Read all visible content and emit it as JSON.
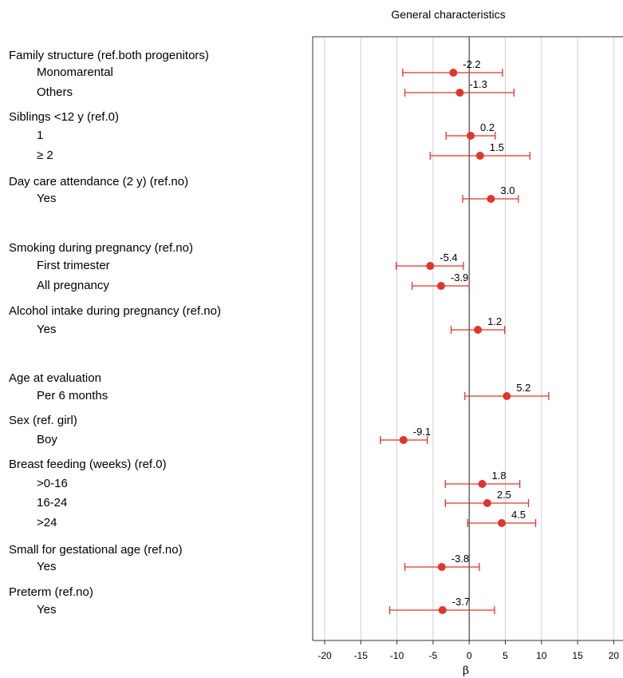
{
  "chart_data": {
    "type": "forest",
    "title": "General characteristics",
    "xlabel": "β",
    "xlim": [
      -20,
      20
    ],
    "xticks": [
      -20,
      -15,
      -10,
      -5,
      0,
      5,
      10,
      15,
      20
    ],
    "grid": true,
    "point_color": "#e0352b",
    "groups": [
      {
        "label": "Family structure (ref.both progenitors)",
        "rows": [
          {
            "label": "Monomarental",
            "value": -2.2,
            "ci": [
              -9.2,
              4.6
            ],
            "value_label": "-2.2"
          },
          {
            "label": "Others",
            "value": -1.3,
            "ci": [
              -8.9,
              6.2
            ],
            "value_label": "-1.3"
          }
        ]
      },
      {
        "label": "Siblings <12 y (ref.0)",
        "rows": [
          {
            "label": "1",
            "value": 0.2,
            "ci": [
              -3.2,
              3.6
            ],
            "value_label": "0.2"
          },
          {
            "label": "≥ 2",
            "value": 1.5,
            "ci": [
              -5.4,
              8.4
            ],
            "value_label": "1.5"
          }
        ]
      },
      {
        "label": "Day care attendance (2 y) (ref.no)",
        "rows": [
          {
            "label": "Yes",
            "value": 3.0,
            "ci": [
              -0.9,
              6.8
            ],
            "value_label": "3.0"
          }
        ]
      },
      {
        "label": "Smoking during pregnancy (ref.no)",
        "rows": [
          {
            "label": "First trimester",
            "value": -5.4,
            "ci": [
              -10.1,
              -0.8
            ],
            "value_label": "-5.4"
          },
          {
            "label": "All pregnancy",
            "value": -3.9,
            "ci": [
              -7.9,
              0.0
            ],
            "value_label": "-3.9"
          }
        ]
      },
      {
        "label": "Alcohol intake during pregnancy (ref.no)",
        "rows": [
          {
            "label": "Yes",
            "value": 1.2,
            "ci": [
              -2.5,
              4.9
            ],
            "value_label": "1.2"
          }
        ]
      },
      {
        "label": "Age at evaluation",
        "rows": [
          {
            "label": "Per 6 months",
            "value": 5.2,
            "ci": [
              -0.6,
              11.0
            ],
            "value_label": "5.2"
          }
        ]
      },
      {
        "label": "Sex (ref. girl)",
        "rows": [
          {
            "label": "Boy",
            "value": -9.1,
            "ci": [
              -12.3,
              -5.8
            ],
            "value_label": "-9.1"
          }
        ]
      },
      {
        "label": "Breast feeding (weeks) (ref.0)",
        "rows": [
          {
            "label": ">0-16",
            "value": 1.8,
            "ci": [
              -3.3,
              7.0
            ],
            "value_label": "1.8"
          },
          {
            "label": "16-24",
            "value": 2.5,
            "ci": [
              -3.3,
              8.2
            ],
            "value_label": "2.5"
          },
          {
            "label": ">24",
            "value": 4.5,
            "ci": [
              -0.2,
              9.2
            ],
            "value_label": "4.5"
          }
        ]
      },
      {
        "label": "Small for gestational age (ref.no)",
        "rows": [
          {
            "label": "Yes",
            "value": -3.8,
            "ci": [
              -8.9,
              1.4
            ],
            "value_label": "-3.8"
          }
        ]
      },
      {
        "label": "Preterm (ref.no)",
        "rows": [
          {
            "label": "Yes",
            "value": -3.7,
            "ci": [
              -11.0,
              3.5
            ],
            "value_label": "-3.7"
          }
        ]
      }
    ]
  }
}
